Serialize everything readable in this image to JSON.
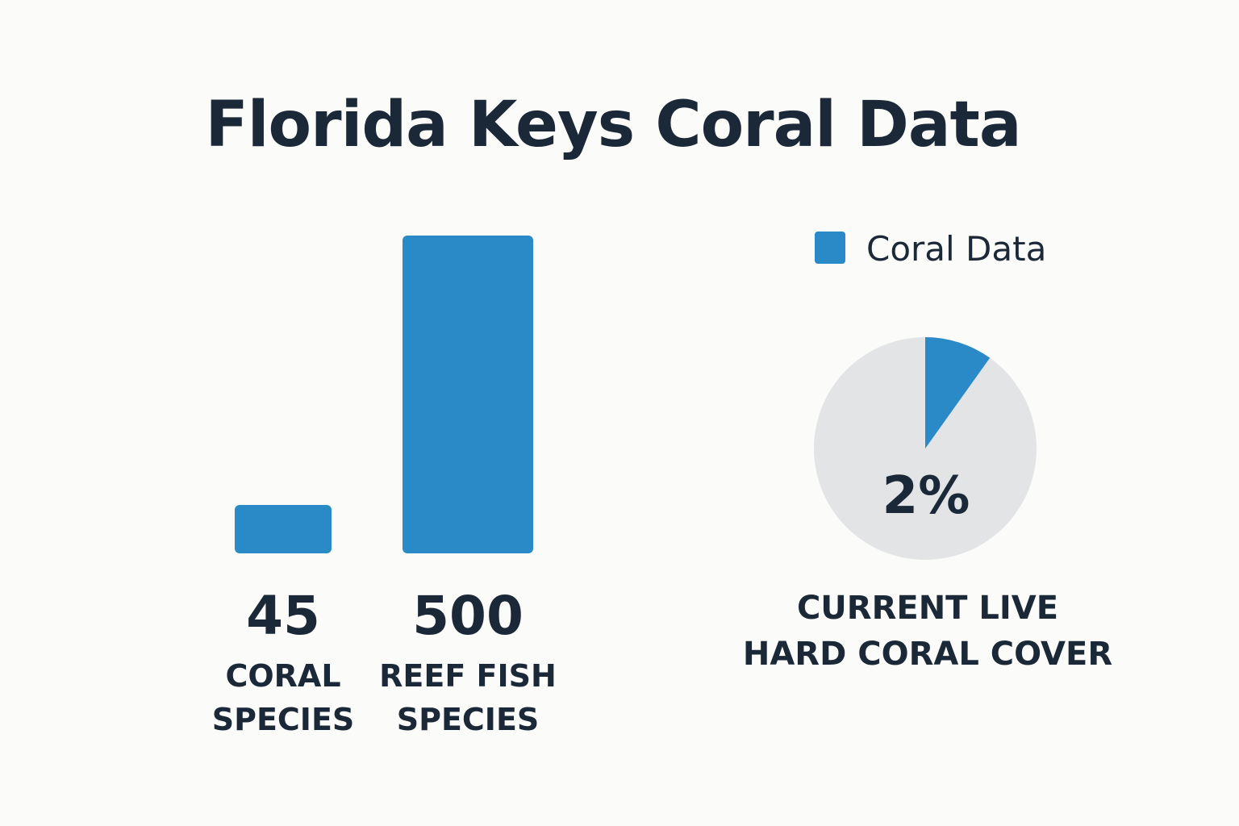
{
  "title": "Florida Keys Coral Data",
  "colors": {
    "accent": "#2a89c7",
    "pie_rest": "#e3e4e5",
    "text": "#1b2838",
    "background": "#fbfbf9"
  },
  "chart_data": [
    {
      "type": "bar",
      "categories": [
        "CORAL SPECIES",
        "REEF FISH SPECIES"
      ],
      "category_lines": [
        [
          "CORAL",
          "SPECIES"
        ],
        [
          "REEF FISH",
          "SPECIES"
        ]
      ],
      "values": [
        45,
        500
      ],
      "value_labels": [
        "45",
        "500"
      ],
      "ylim": [
        0,
        500
      ],
      "grid": false,
      "legend": "none"
    },
    {
      "type": "pie",
      "legend": {
        "label": "Coral Data",
        "placement": "top"
      },
      "slices": [
        {
          "label": "Current live hard coral cover",
          "value": 2,
          "color": "#2a89c7"
        },
        {
          "label": "",
          "value": 98,
          "color": "#e3e4e5"
        }
      ],
      "center_text": "2%",
      "caption_lines": [
        "CURRENT LIVE",
        "HARD CORAL COVER"
      ]
    }
  ]
}
